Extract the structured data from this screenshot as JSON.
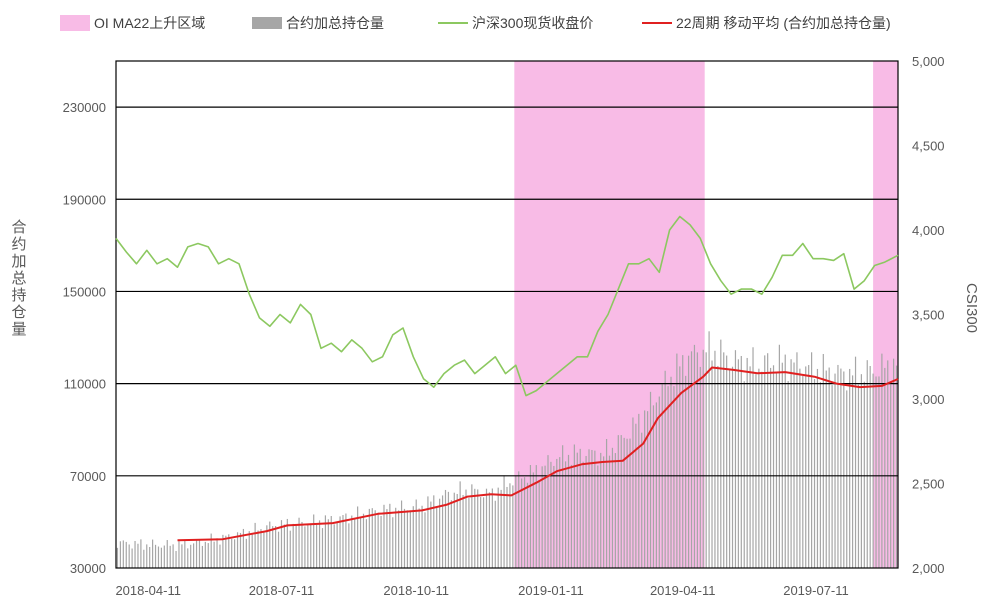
{
  "chart_data": {
    "type": "combo",
    "legend": {
      "position": "top",
      "entries": [
        {
          "name": "OI MA22上升区域",
          "kind": "area",
          "color": "#f8bbe6"
        },
        {
          "name": "合约加总持仓量",
          "kind": "bar",
          "color": "#a6a6a6"
        },
        {
          "name": "沪深300现货收盘价",
          "kind": "line",
          "color": "#8cc860"
        },
        {
          "name": "22周期 移动平均 (合约加总持仓量)",
          "kind": "line",
          "color": "#e02020"
        }
      ]
    },
    "y_left": {
      "title": "合约加总持仓量",
      "ticks": [
        "30000",
        "70000",
        "110000",
        "150000",
        "190000",
        "230000"
      ],
      "min": 30000,
      "max": 250000
    },
    "y_right": {
      "title": "CSI300",
      "ticks": [
        "2,000",
        "2,500",
        "3,000",
        "3,500",
        "4,000",
        "4,500",
        "5,000"
      ],
      "min": 2000,
      "max": 5000
    },
    "x_axis": {
      "ticks": [
        "2018-04-11",
        "2018-07-11",
        "2018-10-11",
        "2019-01-11",
        "2019-04-11",
        "2019-07-11"
      ],
      "start": "2018-03-20",
      "end": "2019-09-05"
    },
    "gridlines_left": [
      70000,
      110000,
      150000,
      190000,
      230000
    ],
    "rising_regions": [
      {
        "from": "2018-12-17",
        "to": "2019-04-26"
      },
      {
        "from": "2019-08-19",
        "to": "2019-09-05"
      }
    ],
    "series": [
      {
        "name": "沪深300现货收盘价",
        "axis": "right",
        "color": "#8cc860",
        "points": [
          [
            "2018-03-20",
            3950
          ],
          [
            "2018-03-27",
            3870
          ],
          [
            "2018-04-03",
            3800
          ],
          [
            "2018-04-10",
            3880
          ],
          [
            "2018-04-17",
            3800
          ],
          [
            "2018-04-24",
            3830
          ],
          [
            "2018-05-01",
            3780
          ],
          [
            "2018-05-08",
            3900
          ],
          [
            "2018-05-15",
            3920
          ],
          [
            "2018-05-22",
            3900
          ],
          [
            "2018-05-29",
            3800
          ],
          [
            "2018-06-05",
            3830
          ],
          [
            "2018-06-12",
            3800
          ],
          [
            "2018-06-19",
            3620
          ],
          [
            "2018-06-26",
            3480
          ],
          [
            "2018-07-03",
            3430
          ],
          [
            "2018-07-10",
            3500
          ],
          [
            "2018-07-17",
            3450
          ],
          [
            "2018-07-24",
            3560
          ],
          [
            "2018-07-31",
            3500
          ],
          [
            "2018-08-07",
            3300
          ],
          [
            "2018-08-14",
            3330
          ],
          [
            "2018-08-21",
            3280
          ],
          [
            "2018-08-28",
            3350
          ],
          [
            "2018-09-04",
            3300
          ],
          [
            "2018-09-11",
            3220
          ],
          [
            "2018-09-18",
            3250
          ],
          [
            "2018-09-25",
            3380
          ],
          [
            "2018-10-02",
            3420
          ],
          [
            "2018-10-09",
            3250
          ],
          [
            "2018-10-16",
            3120
          ],
          [
            "2018-10-23",
            3070
          ],
          [
            "2018-10-30",
            3150
          ],
          [
            "2018-11-06",
            3200
          ],
          [
            "2018-11-13",
            3230
          ],
          [
            "2018-11-20",
            3150
          ],
          [
            "2018-11-27",
            3200
          ],
          [
            "2018-12-04",
            3250
          ],
          [
            "2018-12-11",
            3150
          ],
          [
            "2018-12-18",
            3200
          ],
          [
            "2018-12-25",
            3020
          ],
          [
            "2019-01-01",
            3050
          ],
          [
            "2019-01-08",
            3100
          ],
          [
            "2019-01-15",
            3150
          ],
          [
            "2019-01-22",
            3200
          ],
          [
            "2019-01-29",
            3250
          ],
          [
            "2019-02-05",
            3250
          ],
          [
            "2019-02-12",
            3400
          ],
          [
            "2019-02-19",
            3500
          ],
          [
            "2019-02-26",
            3650
          ],
          [
            "2019-03-05",
            3800
          ],
          [
            "2019-03-12",
            3800
          ],
          [
            "2019-03-19",
            3830
          ],
          [
            "2019-03-26",
            3750
          ],
          [
            "2019-04-02",
            4000
          ],
          [
            "2019-04-09",
            4080
          ],
          [
            "2019-04-16",
            4030
          ],
          [
            "2019-04-23",
            3950
          ],
          [
            "2019-04-30",
            3800
          ],
          [
            "2019-05-07",
            3700
          ],
          [
            "2019-05-14",
            3620
          ],
          [
            "2019-05-21",
            3650
          ],
          [
            "2019-05-28",
            3650
          ],
          [
            "2019-06-04",
            3620
          ],
          [
            "2019-06-11",
            3720
          ],
          [
            "2019-06-18",
            3850
          ],
          [
            "2019-06-25",
            3850
          ],
          [
            "2019-07-02",
            3920
          ],
          [
            "2019-07-09",
            3830
          ],
          [
            "2019-07-16",
            3830
          ],
          [
            "2019-07-23",
            3820
          ],
          [
            "2019-07-30",
            3860
          ],
          [
            "2019-08-06",
            3650
          ],
          [
            "2019-08-13",
            3700
          ],
          [
            "2019-08-20",
            3790
          ],
          [
            "2019-08-27",
            3810
          ],
          [
            "2019-09-05",
            3850
          ]
        ]
      },
      {
        "name": "22周期 移动平均 (合约加总持仓量)",
        "axis": "left",
        "color": "#e02020",
        "points": [
          [
            "2018-05-01",
            42000
          ],
          [
            "2018-06-01",
            42500
          ],
          [
            "2018-07-01",
            46000
          ],
          [
            "2018-07-15",
            48500
          ],
          [
            "2018-08-15",
            49500
          ],
          [
            "2018-09-15",
            53500
          ],
          [
            "2018-10-15",
            55000
          ],
          [
            "2018-11-01",
            57500
          ],
          [
            "2018-11-15",
            61000
          ],
          [
            "2018-12-01",
            62000
          ],
          [
            "2018-12-15",
            61500
          ],
          [
            "2019-01-01",
            67000
          ],
          [
            "2019-01-15",
            72000
          ],
          [
            "2019-02-01",
            75000
          ],
          [
            "2019-02-15",
            76000
          ],
          [
            "2019-03-01",
            76500
          ],
          [
            "2019-03-15",
            84000
          ],
          [
            "2019-03-25",
            95000
          ],
          [
            "2019-04-10",
            106000
          ],
          [
            "2019-04-25",
            113000
          ],
          [
            "2019-05-01",
            117000
          ],
          [
            "2019-05-15",
            116000
          ],
          [
            "2019-06-01",
            114500
          ],
          [
            "2019-06-20",
            115000
          ],
          [
            "2019-07-10",
            113000
          ],
          [
            "2019-07-25",
            110000
          ],
          [
            "2019-08-10",
            108500
          ],
          [
            "2019-08-25",
            109000
          ],
          [
            "2019-09-05",
            112000
          ]
        ]
      },
      {
        "name": "合约加总持仓量",
        "axis": "left",
        "color": "#a6a6a6",
        "type": "bar",
        "points": [
          [
            "2018-03-20",
            41000
          ],
          [
            "2018-04-15",
            40000
          ],
          [
            "2018-05-01",
            40000
          ],
          [
            "2018-05-15",
            41000
          ],
          [
            "2018-06-01",
            43000
          ],
          [
            "2018-06-15",
            45000
          ],
          [
            "2018-07-01",
            48000
          ],
          [
            "2018-07-15",
            49000
          ],
          [
            "2018-08-01",
            50000
          ],
          [
            "2018-08-15",
            51000
          ],
          [
            "2018-09-01",
            53000
          ],
          [
            "2018-09-15",
            55000
          ],
          [
            "2018-10-01",
            56000
          ],
          [
            "2018-10-15",
            57000
          ],
          [
            "2018-11-01",
            62000
          ],
          [
            "2018-11-15",
            64000
          ],
          [
            "2018-12-01",
            62000
          ],
          [
            "2018-12-15",
            68000
          ],
          [
            "2019-01-01",
            72000
          ],
          [
            "2019-01-15",
            78000
          ],
          [
            "2019-02-01",
            80000
          ],
          [
            "2019-02-15",
            79000
          ],
          [
            "2019-03-01",
            86000
          ],
          [
            "2019-03-15",
            96000
          ],
          [
            "2019-04-01",
            112000
          ],
          [
            "2019-04-15",
            122000
          ],
          [
            "2019-05-01",
            125000
          ],
          [
            "2019-05-15",
            120000
          ],
          [
            "2019-06-01",
            118000
          ],
          [
            "2019-06-15",
            120000
          ],
          [
            "2019-07-01",
            118000
          ],
          [
            "2019-07-15",
            116000
          ],
          [
            "2019-08-01",
            114000
          ],
          [
            "2019-08-15",
            115000
          ],
          [
            "2019-09-01",
            118000
          ]
        ]
      }
    ]
  }
}
